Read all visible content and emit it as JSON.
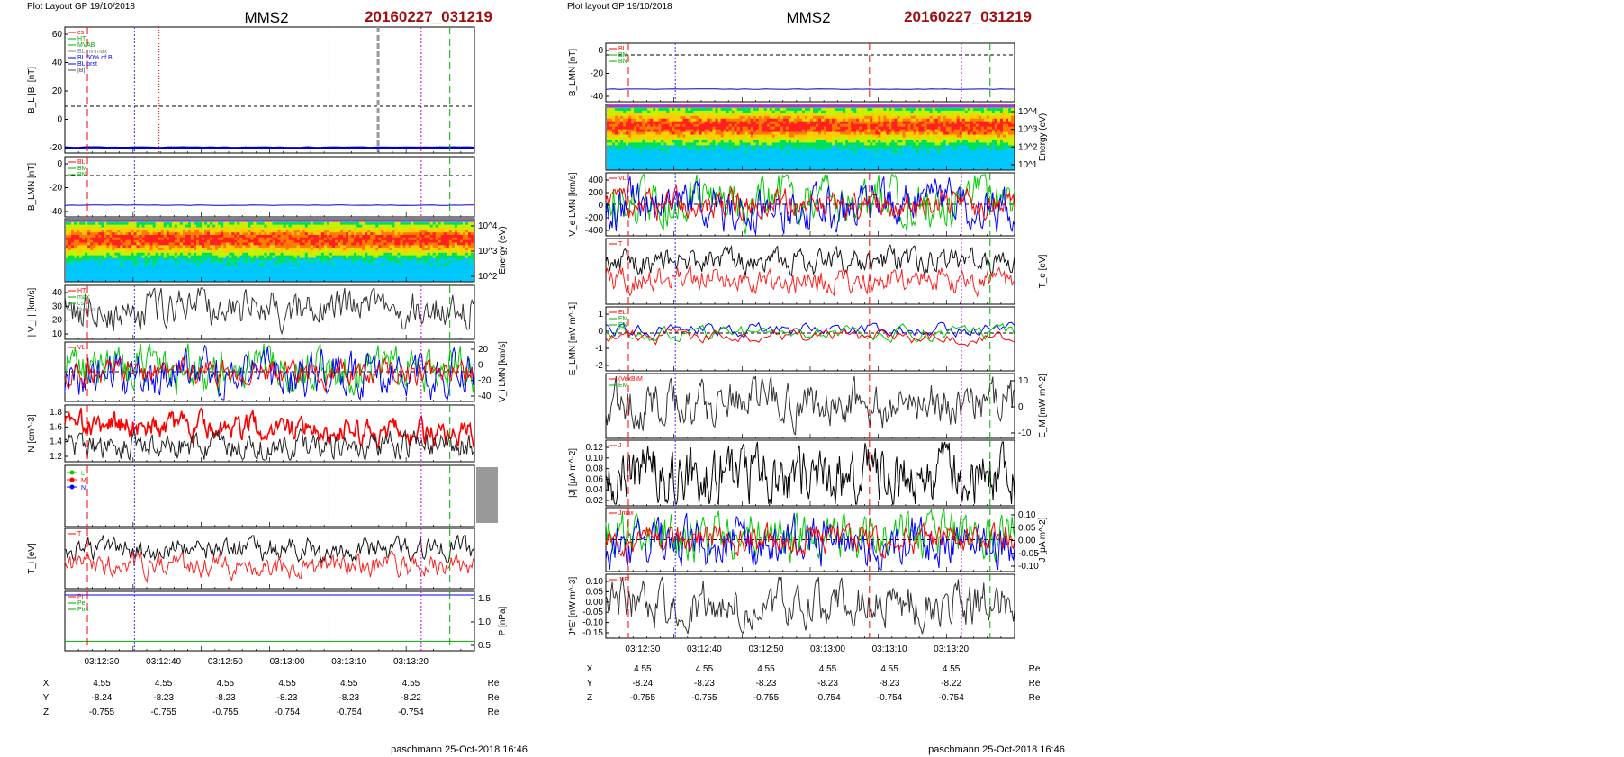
{
  "pages": [
    {
      "header": "Plot Layout GP 19/10/2018",
      "spacecraft": "MMS2",
      "event": "20160227_031219",
      "footer": "paschmann 25-Oct-2018 16:46",
      "time_ticks": [
        "03:12:30",
        "03:12:40",
        "03:12:50",
        "03:13:00",
        "03:13:10",
        "03:13:20"
      ],
      "ephemeris": {
        "rows": [
          {
            "label": "X",
            "values": [
              "4.55",
              "4.55",
              "4.55",
              "4.55",
              "4.55",
              "4.55"
            ],
            "unit": "Re"
          },
          {
            "label": "Y",
            "values": [
              "-8.24",
              "-8.23",
              "-8.23",
              "-8.23",
              "-8.23",
              "-8.22"
            ],
            "unit": "Re"
          },
          {
            "label": "Z",
            "values": [
              "-0.755",
              "-0.755",
              "-0.755",
              "-0.754",
              "-0.754",
              "-0.754"
            ],
            "unit": "Re"
          }
        ]
      },
      "panels": [
        {
          "ylabel": "B_L |B| [nT]",
          "side": "left",
          "ticks": [
            "60",
            "40",
            "20",
            "0",
            "-20"
          ],
          "legend": [
            "cs",
            "HT",
            "MVAB",
            "BLminmax",
            "BL 50% of BL",
            "BL brst",
            "|B|"
          ]
        },
        {
          "ylabel": "B_LMN [nT]",
          "side": "left",
          "ticks": [
            "0",
            "-20",
            "-40"
          ],
          "legend": [
            "BL",
            "BM",
            "BN"
          ]
        },
        {
          "ylabel": "Energy (eV)",
          "side": "right",
          "ticks": [
            "10^4",
            "10^3",
            "10^2"
          ],
          "legend": []
        },
        {
          "ylabel": "| V_i | [km/s]",
          "side": "left",
          "ticks": [
            "40",
            "30",
            "20",
            "10"
          ],
          "legend": [
            "HT",
            "max",
            "cs",
            "dvmax"
          ]
        },
        {
          "ylabel": "V_i LMN [km/s]",
          "side": "right",
          "ticks": [
            "20",
            "0",
            "-20",
            "-40"
          ],
          "legend": [
            "VL"
          ]
        },
        {
          "ylabel": "N [cm^-3]",
          "side": "left",
          "ticks": [
            "1.8",
            "1.6",
            "1.4",
            "1.2"
          ],
          "legend": []
        },
        {
          "ylabel": "",
          "side": "right",
          "ticks": [],
          "legend": [
            "L",
            "M",
            "N"
          ]
        },
        {
          "ylabel": "T_i [eV]",
          "side": "left",
          "ticks": [],
          "legend": [
            "T"
          ]
        },
        {
          "ylabel": "P [nPa]",
          "side": "right",
          "ticks": [
            "1.5",
            "1.0",
            "0.5"
          ],
          "legend": [
            "Pi",
            "Pe",
            "Ptot"
          ]
        }
      ]
    },
    {
      "header": "Plot layout GP 19/10/2018",
      "spacecraft": "MMS2",
      "event": "20160227_031219",
      "footer": "paschmann 25-Oct-2018 16:46",
      "time_ticks": [
        "03:12:30",
        "03:12:40",
        "03:12:50",
        "03:13:00",
        "03:13:10",
        "03:13:20"
      ],
      "ephemeris": {
        "rows": [
          {
            "label": "X",
            "values": [
              "4.55",
              "4.55",
              "4.55",
              "4.55",
              "4.55",
              "4.55"
            ],
            "unit": "Re"
          },
          {
            "label": "Y",
            "values": [
              "-8.24",
              "-8.23",
              "-8.23",
              "-8.23",
              "-8.23",
              "-8.22"
            ],
            "unit": "Re"
          },
          {
            "label": "Z",
            "values": [
              "-0.755",
              "-0.755",
              "-0.755",
              "-0.754",
              "-0.754",
              "-0.754"
            ],
            "unit": "Re"
          }
        ]
      },
      "panels": [
        {
          "ylabel": "B_LMN [nT]",
          "side": "left",
          "ticks": [
            "0",
            "-20",
            "-40"
          ],
          "legend": [
            "BL",
            "BM",
            "BN"
          ]
        },
        {
          "ylabel": "Energy (eV)",
          "side": "right",
          "ticks": [
            "10^4",
            "10^3",
            "10^2",
            "10^1"
          ],
          "legend": []
        },
        {
          "ylabel": "V_e LMN [km/s]",
          "side": "left",
          "ticks": [
            "400",
            "200",
            "0",
            "-200",
            "-400"
          ],
          "legend": [
            "VL"
          ]
        },
        {
          "ylabel": "T_e [eV]",
          "side": "right",
          "ticks": [],
          "legend": [
            "T"
          ]
        },
        {
          "ylabel": "E_LMN [mV m^-1]",
          "side": "left",
          "ticks": [
            "1",
            "0",
            "-1",
            "-2"
          ],
          "legend": [
            "EL",
            "EM",
            "EN"
          ]
        },
        {
          "ylabel": "E_M [mW m^-2]",
          "side": "right",
          "ticks": [
            "10",
            "0",
            "-10"
          ],
          "legend": [
            "(VexB)M",
            "EM"
          ]
        },
        {
          "ylabel": "|J| [μA m^-2]",
          "side": "left",
          "ticks": [
            "0.12",
            "0.10",
            "0.08",
            "0.06",
            "0.04",
            "0.02"
          ],
          "legend": [
            "J"
          ]
        },
        {
          "ylabel": "J [μA m^-2]",
          "side": "right",
          "ticks": [
            "0.10",
            "0.05",
            "0.00",
            "-0.05",
            "-0.10"
          ],
          "legend": [
            "Jmax"
          ]
        },
        {
          "ylabel": "J*E' [nW m^-3]",
          "side": "left",
          "ticks": [
            "0.10",
            "0.05",
            "0.00",
            "-0.05",
            "-0.10",
            "-0.15"
          ],
          "legend": [
            "J*E'"
          ]
        }
      ]
    }
  ],
  "chart_data": [
    {
      "type": "line",
      "title": "MMS2 20160227_031219",
      "x": [
        "03:12:30",
        "03:12:40",
        "03:12:50",
        "03:13:00",
        "03:13:10",
        "03:13:20"
      ],
      "panels": [
        {
          "ylabel": "B_L |B| [nT]",
          "ylim": [
            -30,
            60
          ],
          "series": [
            {
              "name": "BL",
              "values": [
                -33,
                -33,
                -33,
                -33,
                -33,
                -33
              ]
            },
            {
              "name": "|B|",
              "values": [
                -34,
                -34,
                -34,
                -34,
                -34,
                -34
              ]
            }
          ]
        },
        {
          "ylabel": "B_LMN [nT]",
          "ylim": [
            -50,
            10
          ],
          "series": [
            {
              "name": "BL",
              "values": [
                -35,
                -35,
                -35,
                -35,
                -35,
                -35
              ]
            }
          ]
        },
        {
          "ylabel": "| V_i | [km/s]",
          "ylim": [
            0,
            50
          ],
          "series": [
            {
              "name": "|Vi|",
              "values": [
                25,
                28,
                26,
                29,
                27,
                26
              ]
            }
          ]
        },
        {
          "ylabel": "V_i LMN [km/s]",
          "ylim": [
            -40,
            25
          ],
          "series": [
            {
              "name": "VL",
              "values": [
                0,
                0,
                0,
                0,
                0,
                0
              ]
            }
          ]
        },
        {
          "ylabel": "N [cm^-3]",
          "ylim": [
            1.2,
            1.85
          ],
          "series": [
            {
              "name": "N red",
              "values": [
                1.65,
                1.63,
                1.62,
                1.6,
                1.57,
                1.52
              ]
            },
            {
              "name": "N black",
              "values": [
                1.45,
                1.42,
                1.4,
                1.41,
                1.4,
                1.38
              ]
            }
          ]
        },
        {
          "ylabel": "P [nPa]",
          "ylim": [
            0.2,
            1.8
          ],
          "series": [
            {
              "name": "Pi",
              "values": [
                1.3,
                1.3,
                1.3,
                1.3,
                1.3,
                1.3
              ]
            },
            {
              "name": "Pe",
              "values": [
                0.3,
                0.3,
                0.3,
                0.3,
                0.3,
                0.3
              ]
            }
          ]
        }
      ]
    },
    {
      "type": "line",
      "title": "MMS2 20160227_031219",
      "x": [
        "03:12:30",
        "03:12:40",
        "03:12:50",
        "03:13:00",
        "03:13:10",
        "03:13:20"
      ],
      "panels": [
        {
          "ylabel": "B_LMN [nT]",
          "ylim": [
            -50,
            10
          ],
          "series": [
            {
              "name": "BL",
              "values": [
                -35,
                -35,
                -35,
                -35,
                -35,
                -35
              ]
            }
          ]
        },
        {
          "ylabel": "V_e LMN [km/s]",
          "ylim": [
            -500,
            500
          ],
          "series": [
            {
              "name": "VL",
              "values": [
                0,
                0,
                0,
                0,
                0,
                0
              ]
            }
          ]
        },
        {
          "ylabel": "E_LMN [mV m^-1]",
          "ylim": [
            -2.5,
            1.8
          ],
          "series": [
            {
              "name": "EL",
              "values": [
                0.3,
                0.5,
                0.4,
                0.2,
                0.1,
                0.5
              ]
            },
            {
              "name": "EN",
              "values": [
                0.1,
                -0.3,
                -0.5,
                -0.8,
                -1.5,
                -0.5
              ]
            }
          ]
        },
        {
          "ylabel": "E_M [mW m^-2]",
          "ylim": [
            -15,
            15
          ],
          "series": [
            {
              "name": "(VexB)M",
              "values": [
                0,
                0,
                0,
                0,
                0,
                0
              ]
            }
          ]
        },
        {
          "ylabel": "|J| [μA m^-2]",
          "ylim": [
            0.0,
            0.12
          ],
          "series": [
            {
              "name": "J",
              "values": [
                0.05,
                0.06,
                0.05,
                0.06,
                0.05,
                0.04
              ]
            }
          ]
        },
        {
          "ylabel": "J [μA m^-2]",
          "ylim": [
            -0.12,
            0.12
          ],
          "series": [
            {
              "name": "Jmax",
              "values": [
                0,
                0,
                0,
                0,
                0,
                0
              ]
            }
          ]
        },
        {
          "ylabel": "J*E' [nW m^-3]",
          "ylim": [
            -0.16,
            0.1
          ],
          "series": [
            {
              "name": "J*E'",
              "values": [
                0,
                0,
                0,
                0,
                0,
                0
              ]
            }
          ]
        }
      ]
    }
  ]
}
